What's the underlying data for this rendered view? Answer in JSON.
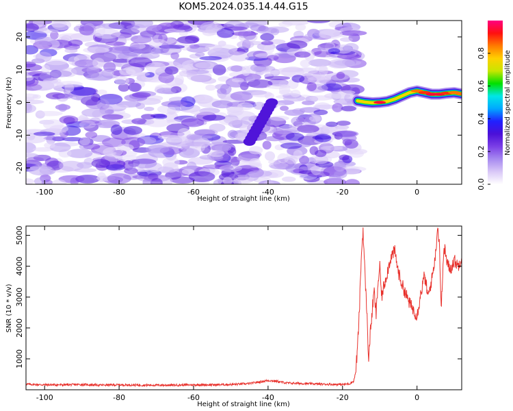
{
  "title": "KOM5.2024.035.14.44.G15",
  "colors": {
    "snr_line": "#e8302b",
    "axis": "#000000",
    "background": "#ffffff",
    "colormap": [
      "#ffffff",
      "#d9c8f7",
      "#a78af0",
      "#7b3fe6",
      "#4b10d8",
      "#2020ff",
      "#00a8ff",
      "#00e6e6",
      "#00e000",
      "#c8e600",
      "#ffd000",
      "#ff7a00",
      "#ff1010",
      "#ff0080"
    ]
  },
  "chart_data": [
    {
      "type": "heatmap",
      "xlabel": "Height of straight line (km)",
      "ylabel": "Frequency (Hz)",
      "xlim": [
        -105,
        12
      ],
      "ylim": [
        -25,
        25
      ],
      "xticks": [
        -100,
        -80,
        -60,
        -40,
        -20,
        0
      ],
      "yticks": [
        -20,
        -10,
        0,
        10,
        20
      ],
      "colorbar": {
        "label": "Normalized spectral amplitude",
        "range": [
          0,
          1
        ],
        "ticks": [
          0.0,
          0.2,
          0.4,
          0.6,
          0.8
        ],
        "tick_labels": [
          "0.0",
          "0.2",
          "0.4",
          "0.6",
          "0.8"
        ]
      },
      "features": {
        "noise_region_x": [
          -105,
          -16
        ],
        "noise_amplitude_max": 0.3,
        "linear_streak": {
          "x_start": -45,
          "y_start": -12,
          "x_end": -39,
          "y_end": 0,
          "amplitude": 0.3
        },
        "signal_trace": [
          {
            "x": -16,
            "y": 0.5,
            "amp": 0.45
          },
          {
            "x": -14,
            "y": 0.1,
            "amp": 0.55
          },
          {
            "x": -12,
            "y": -0.1,
            "amp": 0.75
          },
          {
            "x": -10,
            "y": 0.0,
            "amp": 0.95
          },
          {
            "x": -8,
            "y": 0.3,
            "amp": 0.8
          },
          {
            "x": -6,
            "y": 1.0,
            "amp": 0.8
          },
          {
            "x": -4,
            "y": 2.0,
            "amp": 0.75
          },
          {
            "x": -2,
            "y": 3.0,
            "amp": 0.8
          },
          {
            "x": 0,
            "y": 3.5,
            "amp": 0.85
          },
          {
            "x": 2,
            "y": 3.0,
            "amp": 0.9
          },
          {
            "x": 4,
            "y": 2.5,
            "amp": 0.95
          },
          {
            "x": 6,
            "y": 2.5,
            "amp": 0.95
          },
          {
            "x": 8,
            "y": 2.8,
            "amp": 0.9
          },
          {
            "x": 10,
            "y": 3.0,
            "amp": 0.85
          },
          {
            "x": 12,
            "y": 2.6,
            "amp": 0.85
          }
        ]
      }
    },
    {
      "type": "line",
      "xlabel": "Height of straight line (km)",
      "ylabel": "SNR (10 * v/v)",
      "xlim": [
        -105,
        12
      ],
      "ylim": [
        0,
        5300
      ],
      "xticks": [
        -100,
        -80,
        -60,
        -40,
        -20,
        0
      ],
      "yticks": [
        1000,
        2000,
        3000,
        4000,
        5000
      ],
      "series": [
        {
          "x": [
            -105,
            -100,
            -95,
            -90,
            -85,
            -80,
            -75,
            -70,
            -65,
            -60,
            -55,
            -50,
            -45,
            -42,
            -40,
            -38,
            -35,
            -30,
            -25,
            -20,
            -18,
            -17,
            -16.5,
            -16,
            -15.5,
            -15,
            -14.5,
            -14,
            -13.5,
            -13,
            -12.5,
            -12,
            -11.5,
            -11,
            -10.5,
            -10,
            -9.5,
            -9,
            -8,
            -7,
            -6,
            -5,
            -4,
            -3,
            -2,
            -1,
            0,
            1,
            2,
            3,
            4,
            5,
            5.5,
            6,
            6.5,
            7,
            7.5,
            8,
            9,
            10,
            11,
            12
          ],
          "y": [
            180,
            160,
            160,
            170,
            150,
            160,
            150,
            150,
            150,
            160,
            160,
            170,
            200,
            260,
            300,
            280,
            220,
            200,
            180,
            170,
            200,
            280,
            550,
            1300,
            2500,
            4200,
            5200,
            3800,
            2600,
            1000,
            1900,
            2600,
            3200,
            2400,
            3400,
            4000,
            3000,
            3300,
            3800,
            4300,
            4500,
            3800,
            3400,
            3100,
            2800,
            2600,
            2400,
            3100,
            3700,
            3000,
            3600,
            4400,
            5300,
            4800,
            2500,
            4200,
            4600,
            4100,
            3900,
            4200,
            4000,
            4300
          ]
        }
      ]
    }
  ]
}
